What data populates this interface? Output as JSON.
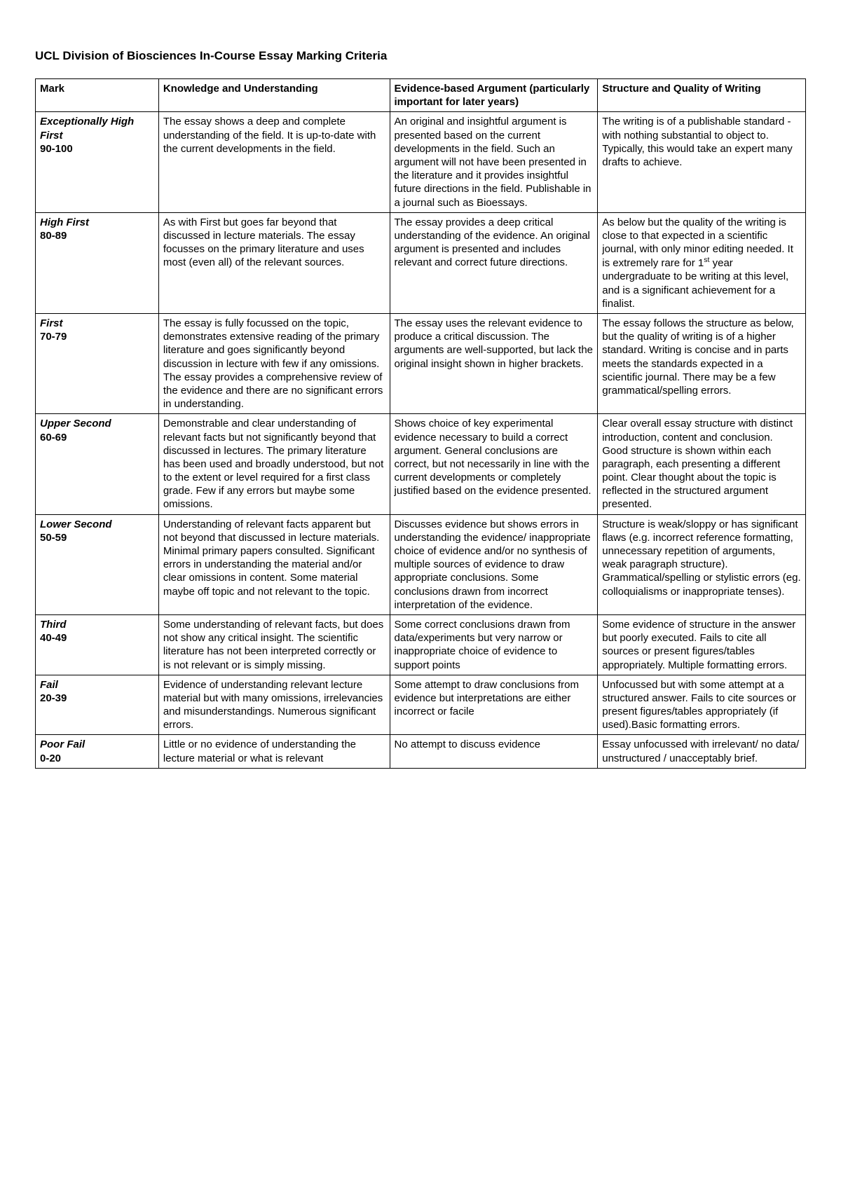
{
  "title": "UCL Division of Biosciences In-Course Essay Marking Criteria",
  "columns": {
    "mark": "Mark",
    "knowledge": "Knowledge and Understanding",
    "evidence": "Evidence-based Argument (particularly important for later years)",
    "structure": "Structure and Quality of Writing"
  },
  "rows": [
    {
      "mark_label": "Exceptionally High First",
      "mark_range": "90-100",
      "knowledge": "The essay shows a deep and complete understanding of the field. It is up-to-date with the current developments in the field.",
      "evidence": "An original and insightful argument is presented based on the current developments in the field. Such an argument will not have been presented in the literature and it provides insightful future directions in the field. Publishable in a journal such as Bioessays.",
      "structure": "The writing is of a publishable standard - with nothing substantial to object to. Typically, this would take an expert many drafts to achieve."
    },
    {
      "mark_label": "High First",
      "mark_range": "80-89",
      "knowledge": "As with First but goes far beyond that discussed in lecture materials. The essay focusses on the primary literature and uses most (even all) of the relevant sources.",
      "evidence": "The essay provides a deep critical understanding of the evidence. An original argument is presented and includes relevant and correct future directions.",
      "structure_html": "As below but the quality of the writing is close to that expected in a scientific journal, with only minor editing needed. It is extremely rare for 1<sup>st</sup> year undergraduate to be writing at this level, and is a significant achievement for a finalist."
    },
    {
      "mark_label": "First",
      "mark_range": "70-79",
      "knowledge": "The essay is fully focussed on the topic, demonstrates extensive reading of the primary literature and goes significantly beyond discussion in lecture with few if any omissions. The essay provides a comprehensive review of the evidence and there are no significant errors in understanding.",
      "evidence": "The essay uses the relevant evidence to produce a critical discussion. The arguments are well-supported, but lack the original insight shown in higher brackets.",
      "structure": "The essay follows the structure as below, but the quality of writing is of a higher standard. Writing is concise and in parts meets the standards expected in a scientific journal. There may be a few grammatical/spelling errors."
    },
    {
      "mark_label": "Upper Second",
      "mark_range": "60-69",
      "knowledge": "Demonstrable and clear understanding of relevant facts but not significantly beyond that discussed in lectures. The primary literature has been used and broadly understood, but not to the extent or level required for a first class grade. Few if any errors but maybe some omissions.",
      "evidence": "Shows choice of key experimental evidence necessary to build a correct argument. General conclusions are correct, but not necessarily in line with the current developments or completely justified based on the evidence presented.",
      "structure": "Clear overall essay structure with distinct introduction, content and conclusion. Good structure is shown within each paragraph, each presenting a different point. Clear thought about the topic is reflected in the structured argument presented."
    },
    {
      "mark_label": "Lower Second",
      "mark_range": "50-59",
      "knowledge": "Understanding of relevant facts apparent but not beyond that discussed in lecture materials. Minimal primary papers consulted. Significant errors in understanding the material and/or clear omissions in content. Some material maybe off topic and not relevant to the topic.",
      "evidence": "Discusses evidence but shows errors in understanding the evidence/ inappropriate choice of evidence and/or no synthesis of multiple sources of evidence to draw appropriate conclusions. Some conclusions drawn from incorrect interpretation of the evidence.",
      "structure": "Structure is weak/sloppy or has significant flaws (e.g. incorrect reference formatting, unnecessary repetition of arguments, weak paragraph structure). Grammatical/spelling or stylistic errors (eg. colloquialisms or inappropriate tenses)."
    },
    {
      "mark_label": "Third",
      "mark_range": "40-49",
      "knowledge": "Some understanding of relevant facts, but does not show any critical insight. The scientific literature has not been interpreted correctly or is not relevant or is simply missing.",
      "evidence": "Some correct conclusions drawn from data/experiments but very narrow or inappropriate choice of evidence to support points",
      "structure": "Some evidence of structure in the answer but poorly executed. Fails to cite all sources or present figures/tables appropriately. Multiple formatting errors."
    },
    {
      "mark_label": "Fail",
      "mark_range": "20-39",
      "knowledge": "Evidence of understanding relevant lecture material but with many omissions, irrelevancies and misunderstandings. Numerous significant errors.",
      "evidence": "Some attempt to draw conclusions from evidence but interpretations are either incorrect or facile",
      "structure": "Unfocussed but with some attempt at a structured answer. Fails to cite sources or present figures/tables appropriately (if used).Basic formatting errors."
    },
    {
      "mark_label": "Poor Fail",
      "mark_range": "0-20",
      "knowledge": "Little or no evidence of understanding the lecture material or what is relevant",
      "evidence": "No attempt to discuss evidence",
      "structure": "Essay unfocussed with irrelevant/ no data/ unstructured / unacceptably brief."
    }
  ]
}
